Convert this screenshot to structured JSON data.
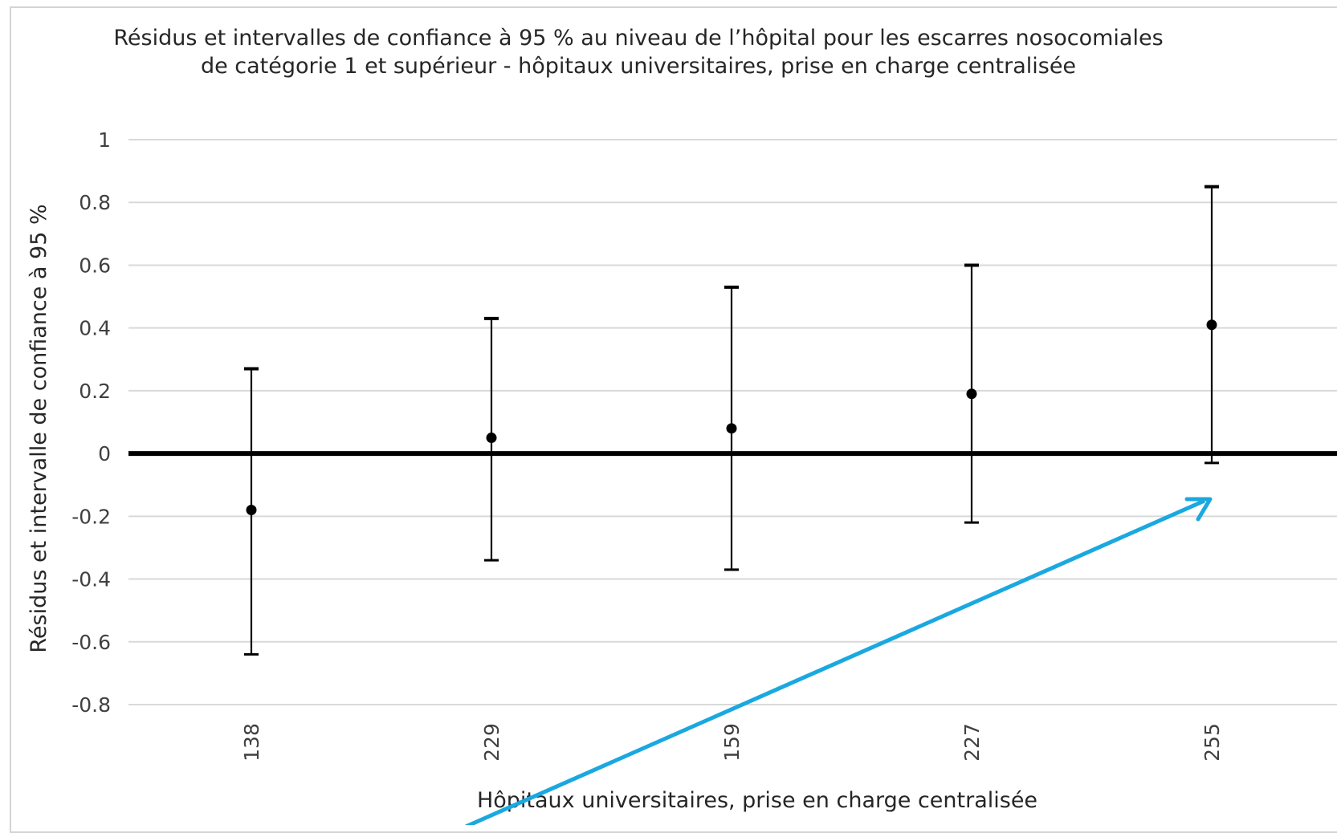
{
  "chart_data": {
    "type": "scatter",
    "title_lines": [
      "Résidus et intervalles de confiance à 95 % au niveau de l’hôpital pour les escarres nosocomiales",
      "de catégorie 1 et supérieur - hôpitaux universitaires, prise en charge centralisée"
    ],
    "xlabel": "Hôpitaux universitaires, prise en charge centralisée",
    "ylabel": "Résidus et intervalle de confiance à 95 %",
    "ylim": [
      -0.8,
      1
    ],
    "y_ticks": [
      "1",
      "0.8",
      "0.6",
      "0.4",
      "0.2",
      "0",
      "-0.2",
      "-0.4",
      "-0.6",
      "-0.8"
    ],
    "y_tick_values": [
      1,
      0.8,
      0.6,
      0.4,
      0.2,
      0,
      -0.2,
      -0.4,
      -0.6,
      -0.8
    ],
    "categories": [
      "138",
      "229",
      "159",
      "227",
      "255"
    ],
    "values": [
      -0.18,
      0.05,
      0.08,
      0.19,
      0.41
    ],
    "lower": [
      -0.64,
      -0.34,
      -0.37,
      -0.22,
      -0.03
    ],
    "upper": [
      0.27,
      0.43,
      0.53,
      0.6,
      0.85
    ],
    "grid": true,
    "reference_line_y": 0,
    "annotation": "arrow pointing to the lower bound of hospital 255"
  },
  "colors": {
    "marks": "#000000",
    "grid": "#d9d9d9",
    "arrow": "#1aa8e0"
  }
}
